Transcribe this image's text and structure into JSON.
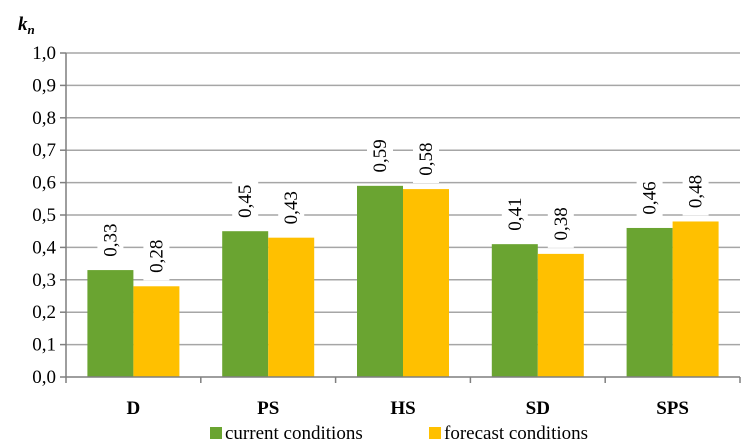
{
  "chart_data": {
    "type": "bar",
    "title": "",
    "ylabel": "k",
    "ylabel_subscript": "n",
    "xlabel": "",
    "categories": [
      "D",
      "PS",
      "HS",
      "SD",
      "SPS"
    ],
    "series": [
      {
        "name": "current conditions",
        "values": [
          0.33,
          0.45,
          0.59,
          0.41,
          0.46
        ],
        "labels": [
          "0,33",
          "0,45",
          "0,59",
          "0,41",
          "0,46"
        ],
        "color": "#6aa431"
      },
      {
        "name": "forecast conditions",
        "values": [
          0.28,
          0.43,
          0.58,
          0.38,
          0.48
        ],
        "labels": [
          "0,28",
          "0,43",
          "0,58",
          "0,38",
          "0,48"
        ],
        "color": "#ffc000"
      }
    ],
    "ylim": [
      0,
      1.0
    ],
    "yticks": [
      0,
      0.1,
      0.2,
      0.3,
      0.4,
      0.5,
      0.6,
      0.7,
      0.8,
      0.9,
      1.0
    ],
    "ytick_labels": [
      "0,0",
      "0,1",
      "0,2",
      "0,3",
      "0,4",
      "0,5",
      "0,6",
      "0,7",
      "0,8",
      "0,9",
      "1,0"
    ],
    "grid": true,
    "legend_position": "bottom",
    "data_labels_rotated": true
  }
}
